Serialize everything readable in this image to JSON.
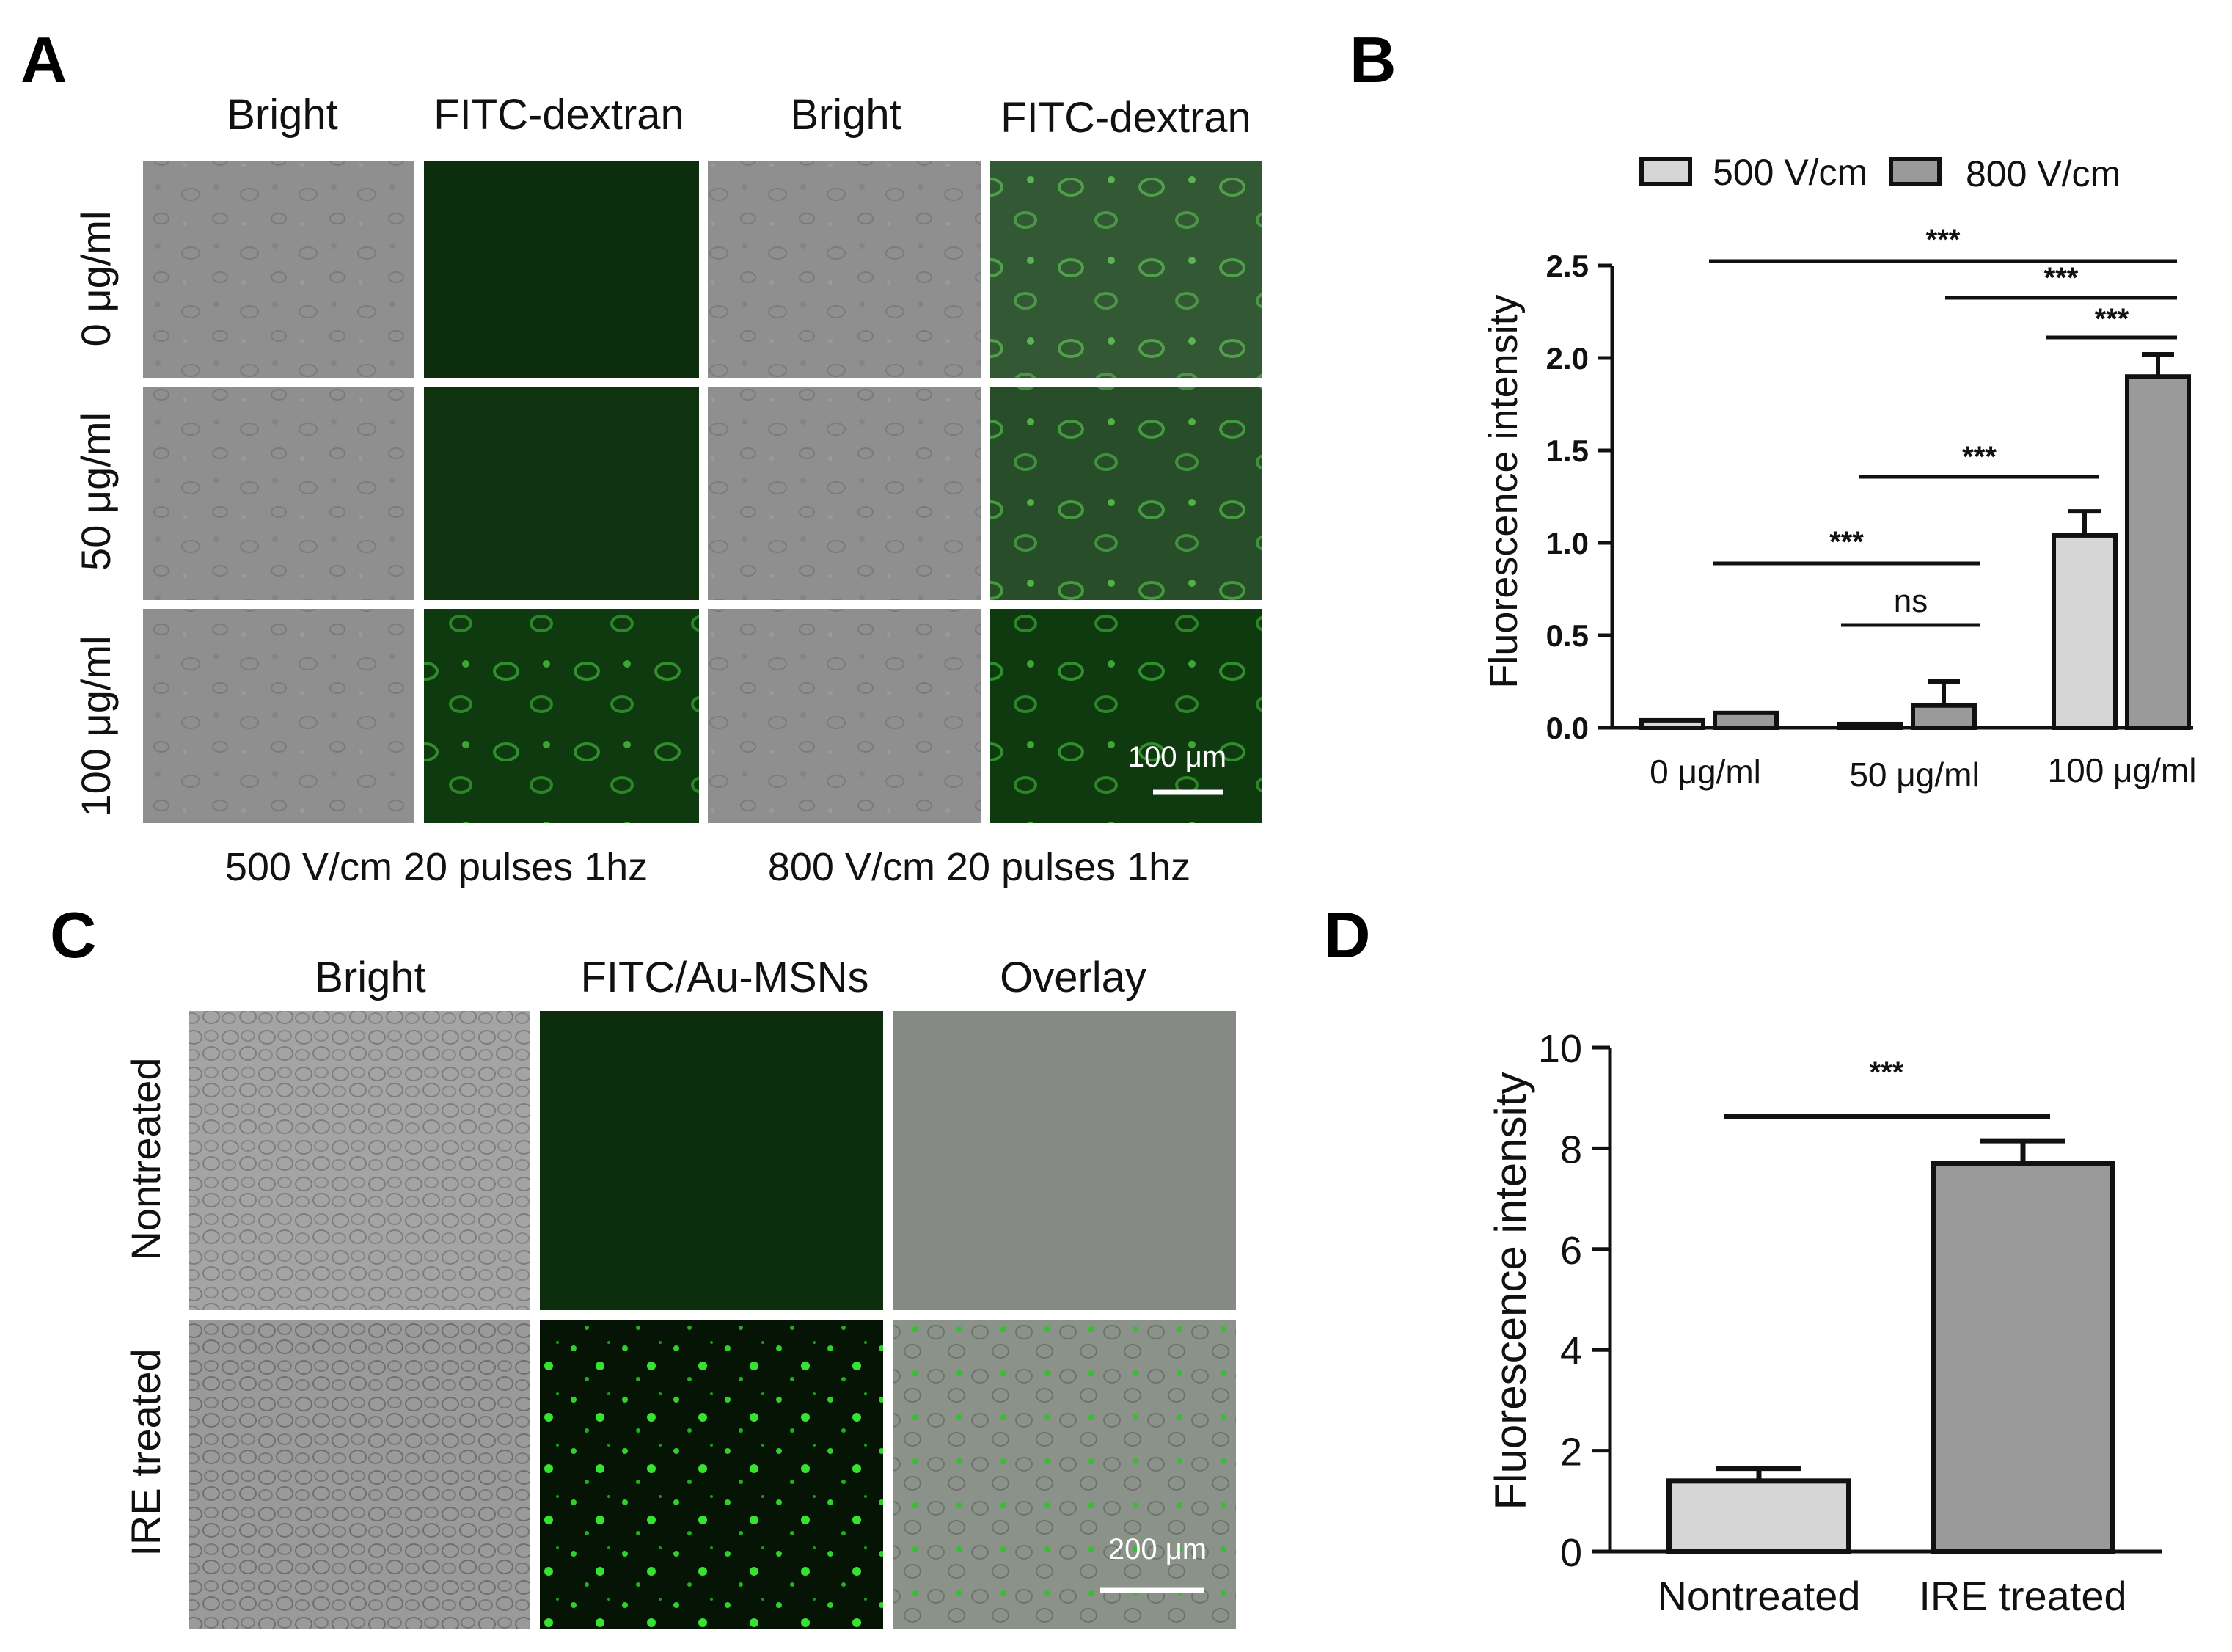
{
  "panels": {
    "a": {
      "letter": "A",
      "col_headers": [
        "Bright",
        "FITC-dextran",
        "Bright",
        "FITC-dextran"
      ],
      "row_labels": [
        "0 μg/ml",
        "50 μg/ml",
        "100 μg/ml"
      ],
      "group_captions": [
        "500 V/cm 20 pulses 1hz",
        "800 V/cm 20 pulses 1hz"
      ],
      "scale_bar": "100 μm"
    },
    "b": {
      "letter": "B"
    },
    "c": {
      "letter": "C",
      "col_headers": [
        "Bright",
        "FITC/Au-MSNs",
        "Overlay"
      ],
      "row_labels": [
        "Nontreated",
        "IRE treated"
      ],
      "scale_bar": "200 μm"
    },
    "d": {
      "letter": "D"
    }
  },
  "colors": {
    "bright_field": "#8e8e8e",
    "fitc_green": "#0f3a10",
    "bar_light": "#d6d6d6",
    "bar_dark": "#9a9a9a"
  },
  "chart_data": [
    {
      "id": "B",
      "type": "bar",
      "title": "",
      "xlabel": "",
      "ylabel": "Fluorescence intensity",
      "categories": [
        "0 μg/ml",
        "50 μg/ml",
        "100 μg/ml"
      ],
      "series": [
        {
          "name": "500 V/cm",
          "values": [
            0.04,
            0.02,
            1.04
          ],
          "errors": [
            0.0,
            0.0,
            0.13
          ],
          "color": "#d6d6d6"
        },
        {
          "name": "800 V/cm",
          "values": [
            0.08,
            0.12,
            1.9
          ],
          "errors": [
            0.0,
            0.13,
            0.12
          ],
          "color": "#9a9a9a"
        }
      ],
      "ylim": [
        0,
        2.5
      ],
      "yticks": [
        "0.0",
        "0.5",
        "1.0",
        "1.5",
        "2.0",
        "2.5"
      ],
      "legend": "top",
      "grid": false,
      "significance": [
        {
          "label": "***",
          "from": "0 μg/ml",
          "to": "100 μg/ml"
        },
        {
          "label": "***",
          "from": "50 μg/ml",
          "to": "100 μg/ml"
        },
        {
          "label": "***",
          "from": "100 μg/ml",
          "to": "100 μg/ml"
        },
        {
          "label": "***",
          "from": "50 μg/ml",
          "to": "100 μg/ml"
        },
        {
          "label": "***",
          "from": "0 μg/ml",
          "to": "50 μg/ml"
        },
        {
          "label": "ns",
          "from": "50 μg/ml",
          "to": "50 μg/ml"
        }
      ]
    },
    {
      "id": "D",
      "type": "bar",
      "title": "",
      "xlabel": "",
      "ylabel": "Fluorescence intensity",
      "categories": [
        "Nontreated",
        "IRE treated"
      ],
      "values": [
        1.4,
        7.7
      ],
      "errors": [
        0.25,
        0.45
      ],
      "colors": [
        "#d6d6d6",
        "#9a9a9a"
      ],
      "ylim": [
        0,
        10
      ],
      "yticks": [
        "0",
        "2",
        "4",
        "6",
        "8",
        "10"
      ],
      "grid": false,
      "significance": [
        {
          "label": "***",
          "from": "Nontreated",
          "to": "IRE treated"
        }
      ]
    }
  ]
}
